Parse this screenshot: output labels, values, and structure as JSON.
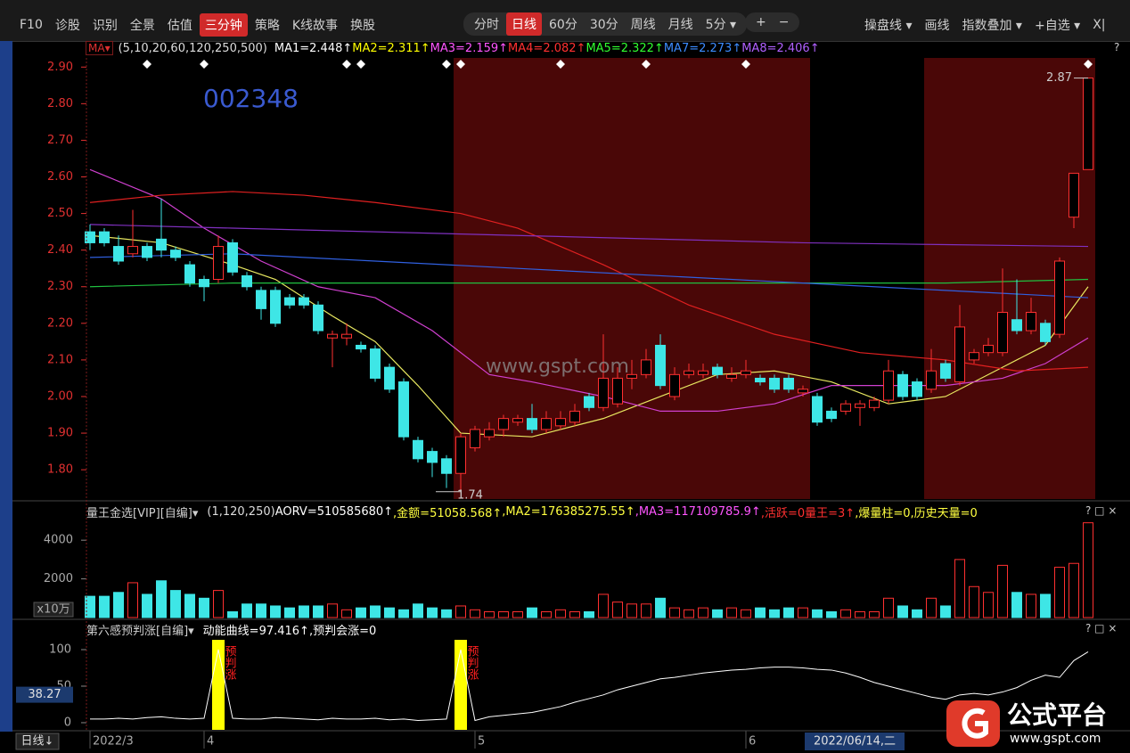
{
  "toolbar": {
    "left": [
      {
        "text": "F10"
      },
      {
        "text": "诊股"
      },
      {
        "text": "识别"
      },
      {
        "text": "全景"
      },
      {
        "text": "估值"
      },
      {
        "text": "三分钟",
        "active": true
      },
      {
        "text": "策略"
      },
      {
        "text": "K线故事"
      },
      {
        "text": "换股"
      }
    ],
    "periods": [
      {
        "text": "分时"
      },
      {
        "text": "日线",
        "active": true
      },
      {
        "text": "60分"
      },
      {
        "text": "30分"
      },
      {
        "text": "周线"
      },
      {
        "text": "月线"
      },
      {
        "text": "5分 ▾"
      }
    ],
    "zoom": [
      {
        "text": "+"
      },
      {
        "text": "−"
      }
    ],
    "right": [
      {
        "text": "操盘线 ▾"
      },
      {
        "text": "画线"
      },
      {
        "text": "指数叠加 ▾"
      },
      {
        "text": "+自选 ▾"
      },
      {
        "text": "X|"
      }
    ]
  },
  "panel_icons": "? □ ×",
  "period_button": "日线↓",
  "cursor_date": "2022/06/14,二",
  "logo": {
    "name": "公式平台",
    "url": "www.gspt.com"
  },
  "chart_data": [
    {
      "type": "candlestick",
      "title": "002348",
      "watermark": "www.gspt.com",
      "indicator_name": "MA▾",
      "params": "(5,10,20,60,120,250,500)",
      "help": "?",
      "legend": [
        {
          "text": "MA1=2.448↑",
          "color": "#ffffff"
        },
        {
          "text": "MA2=2.311↑",
          "color": "#ffff00"
        },
        {
          "text": "MA3=2.159↑",
          "color": "#ff55ff"
        },
        {
          "text": "MA4=2.082↑",
          "color": "#ff3030"
        },
        {
          "text": "MA5=2.322↑",
          "color": "#30ff30"
        },
        {
          "text": "MA7=2.273↑",
          "color": "#3c8cff"
        },
        {
          "text": "MA8=2.406↑",
          "color": "#b060ff"
        }
      ],
      "up_color": "#ff3030",
      "down_color": "#3ee6e6",
      "axis_color": "#e03030",
      "shade_color": "#4a0707",
      "open": [
        2.45,
        2.45,
        2.41,
        2.39,
        2.41,
        2.43,
        2.4,
        2.36,
        2.32,
        2.32,
        2.42,
        2.33,
        2.29,
        2.29,
        2.27,
        2.27,
        2.25,
        2.16,
        2.16,
        2.14,
        2.13,
        2.08,
        2.04,
        1.88,
        1.85,
        1.83,
        1.79,
        1.86,
        1.89,
        1.91,
        1.93,
        1.94,
        1.91,
        1.92,
        1.93,
        2.0,
        1.97,
        1.98,
        2.05,
        2.06,
        2.14,
        2.0,
        2.06,
        2.06,
        2.08,
        2.05,
        2.06,
        2.05,
        2.05,
        2.05,
        2.01,
        2.0,
        1.96,
        1.96,
        1.97,
        1.97,
        1.99,
        2.06,
        2.04,
        2.02,
        2.09,
        2.04,
        2.1,
        2.12,
        2.12,
        2.21,
        2.18,
        2.2,
        2.17,
        2.49,
        2.62
      ],
      "high": [
        2.47,
        2.46,
        2.44,
        2.51,
        2.42,
        2.54,
        2.41,
        2.37,
        2.33,
        2.44,
        2.43,
        2.34,
        2.3,
        2.3,
        2.28,
        2.28,
        2.26,
        2.18,
        2.2,
        2.15,
        2.14,
        2.09,
        2.05,
        1.89,
        1.86,
        1.84,
        1.9,
        1.92,
        1.93,
        1.95,
        1.95,
        1.98,
        1.96,
        1.96,
        1.98,
        2.01,
        2.17,
        2.08,
        2.1,
        2.13,
        2.17,
        2.08,
        2.09,
        2.09,
        2.09,
        2.08,
        2.1,
        2.06,
        2.06,
        2.06,
        2.03,
        2.01,
        1.97,
        1.99,
        1.99,
        2.0,
        2.1,
        2.07,
        2.05,
        2.13,
        2.1,
        2.25,
        2.13,
        2.16,
        2.35,
        2.32,
        2.27,
        2.21,
        2.38,
        2.61,
        2.87
      ],
      "low": [
        2.4,
        2.41,
        2.36,
        2.38,
        2.37,
        2.38,
        2.37,
        2.3,
        2.26,
        2.31,
        2.33,
        2.29,
        2.21,
        2.19,
        2.24,
        2.24,
        2.17,
        2.08,
        2.14,
        2.12,
        2.04,
        2.01,
        1.88,
        1.82,
        1.78,
        1.75,
        1.74,
        1.85,
        1.88,
        1.89,
        1.92,
        1.9,
        1.9,
        1.91,
        1.92,
        1.96,
        1.96,
        1.97,
        2.02,
        2.05,
        2.02,
        1.99,
        2.05,
        2.05,
        2.05,
        2.04,
        2.05,
        2.03,
        2.01,
        2.01,
        2.0,
        1.92,
        1.93,
        1.95,
        1.92,
        1.96,
        1.98,
        1.99,
        1.99,
        2.01,
        2.04,
        2.03,
        2.09,
        2.11,
        2.11,
        2.17,
        2.17,
        2.14,
        2.16,
        2.46,
        2.62
      ],
      "close": [
        2.42,
        2.42,
        2.37,
        2.41,
        2.38,
        2.4,
        2.38,
        2.31,
        2.3,
        2.41,
        2.34,
        2.3,
        2.24,
        2.2,
        2.25,
        2.25,
        2.18,
        2.17,
        2.17,
        2.13,
        2.05,
        2.02,
        1.89,
        1.83,
        1.82,
        1.79,
        1.89,
        1.91,
        1.91,
        1.94,
        1.94,
        1.91,
        1.94,
        1.94,
        1.96,
        1.97,
        2.05,
        2.05,
        2.06,
        2.1,
        2.03,
        2.06,
        2.07,
        2.07,
        2.06,
        2.06,
        2.07,
        2.04,
        2.02,
        2.02,
        2.02,
        1.93,
        1.94,
        1.98,
        1.98,
        1.99,
        2.07,
        2.0,
        2.0,
        2.07,
        2.05,
        2.19,
        2.12,
        2.14,
        2.23,
        2.18,
        2.23,
        2.15,
        2.37,
        2.61,
        2.87
      ],
      "ma_lines": [
        {
          "color": "#e8e860",
          "x": [
            0,
            5,
            10,
            13,
            17,
            20,
            23,
            26,
            31,
            36,
            40,
            44,
            48,
            52,
            56,
            60,
            64,
            67,
            70
          ],
          "values": [
            2.44,
            2.42,
            2.36,
            2.32,
            2.22,
            2.15,
            2.03,
            1.9,
            1.89,
            1.94,
            2.0,
            2.06,
            2.07,
            2.04,
            1.98,
            2.0,
            2.08,
            2.14,
            2.3
          ]
        },
        {
          "color": "#d040d0",
          "x": [
            0,
            5,
            8,
            12,
            16,
            20,
            24,
            28,
            31,
            36,
            40,
            44,
            48,
            52,
            56,
            60,
            64,
            67,
            70
          ],
          "values": [
            2.62,
            2.54,
            2.46,
            2.37,
            2.3,
            2.27,
            2.18,
            2.06,
            2.04,
            2.0,
            1.96,
            1.96,
            1.98,
            2.03,
            2.03,
            2.03,
            2.05,
            2.09,
            2.16
          ]
        },
        {
          "color": "#e02020",
          "x": [
            0,
            5,
            10,
            15,
            20,
            26,
            30,
            36,
            42,
            48,
            54,
            60,
            65,
            70
          ],
          "values": [
            2.53,
            2.55,
            2.56,
            2.55,
            2.53,
            2.5,
            2.46,
            2.36,
            2.25,
            2.17,
            2.12,
            2.1,
            2.07,
            2.08
          ]
        },
        {
          "color": "#20c040",
          "x": [
            0,
            10,
            20,
            30,
            40,
            50,
            60,
            70
          ],
          "values": [
            2.3,
            2.31,
            2.31,
            2.31,
            2.31,
            2.31,
            2.31,
            2.32
          ]
        },
        {
          "color": "#3060e0",
          "x": [
            0,
            10,
            20,
            30,
            40,
            50,
            60,
            70
          ],
          "values": [
            2.38,
            2.39,
            2.37,
            2.35,
            2.33,
            2.31,
            2.29,
            2.27
          ]
        },
        {
          "color": "#8030c0",
          "x": [
            0,
            10,
            20,
            30,
            40,
            50,
            60,
            70
          ],
          "values": [
            2.47,
            2.46,
            2.45,
            2.44,
            2.43,
            2.42,
            2.415,
            2.41
          ]
        }
      ],
      "shaded": [
        [
          25.5,
          50.5
        ],
        [
          58.5,
          70.5
        ]
      ],
      "signals": [
        4,
        8,
        18,
        19,
        25,
        26,
        33,
        39,
        46,
        70
      ],
      "high_label": 2.87,
      "low_label": 1.74,
      "ylim": [
        1.72,
        2.925
      ],
      "yticks": [
        {
          "value": 2.9,
          "label": "2.90"
        },
        {
          "value": 2.8,
          "label": "2.80"
        },
        {
          "value": 2.7,
          "label": "2.70"
        },
        {
          "value": 2.6,
          "label": "2.60"
        },
        {
          "value": 2.5,
          "label": "2.50"
        },
        {
          "value": 2.4,
          "label": "2.40"
        },
        {
          "value": 2.3,
          "label": "2.30"
        },
        {
          "value": 2.2,
          "label": "2.20"
        },
        {
          "value": 2.1,
          "label": "2.10"
        },
        {
          "value": 2.0,
          "label": "2.00"
        },
        {
          "value": 1.9,
          "label": "1.90"
        },
        {
          "value": 1.8,
          "label": "1.80"
        }
      ],
      "xticks": [
        {
          "value": 0,
          "label": "2022/3"
        },
        {
          "value": 8,
          "label": "4"
        },
        {
          "value": 27,
          "label": "5"
        },
        {
          "value": 46,
          "label": "6"
        }
      ]
    },
    {
      "type": "bar",
      "title": "量王金选[VIP][自编]▾",
      "legend": [
        {
          "text": "(1,120,250)",
          "color": "#dddddd"
        },
        {
          "text": "AORV=510585680↑",
          "color": "#ffffff"
        },
        {
          "text": ",金额=51058.568↑",
          "color": "#ffff40"
        },
        {
          "text": ",MA2=176385275.55↑",
          "color": "#ffff40"
        },
        {
          "text": ",MA3=117109785.9↑",
          "color": "#ff55ff"
        },
        {
          "text": ",活跃=0",
          "color": "#ff3030"
        },
        {
          "text": "量王=3↑",
          "color": "#ff3030"
        },
        {
          "text": ",爆量柱=0",
          "color": "#ffff40"
        },
        {
          "text": ",历史天量=0",
          "color": "#ffff40"
        }
      ],
      "unit": "x10万",
      "values": [
        1100,
        1100,
        1300,
        1800,
        1200,
        1900,
        1400,
        1200,
        1000,
        1400,
        300,
        700,
        700,
        600,
        500,
        600,
        600,
        700,
        400,
        500,
        600,
        500,
        400,
        700,
        500,
        400,
        600,
        400,
        300,
        300,
        300,
        500,
        300,
        400,
        300,
        300,
        1200,
        800,
        700,
        700,
        1000,
        500,
        400,
        500,
        400,
        500,
        400,
        500,
        400,
        500,
        500,
        400,
        300,
        400,
        300,
        300,
        1000,
        600,
        400,
        1000,
        600,
        3000,
        1600,
        1300,
        2700,
        1300,
        1200,
        1200,
        2600,
        2800,
        4900
      ],
      "ylim": [
        0,
        4930
      ],
      "yticks": [
        2000,
        4000
      ]
    },
    {
      "type": "line",
      "title": "第六感预判涨[自编]▾",
      "legend": [
        {
          "text": "动能曲线=97.416↑",
          "color": "#ffffff"
        },
        {
          "text": ",预判会涨=0",
          "color": "#ffffff"
        }
      ],
      "line_color": "#ffffff",
      "signal_color": "#ffff00",
      "signal_text": "预判涨",
      "signals": [
        9,
        26
      ],
      "cursor_value": 38.27,
      "values": [
        5,
        5,
        6,
        5,
        7,
        8,
        6,
        5,
        6,
        100,
        6,
        5,
        5,
        7,
        6,
        5,
        4,
        6,
        5,
        5,
        6,
        4,
        5,
        3,
        4,
        5,
        100,
        3,
        8,
        10,
        12,
        14,
        18,
        22,
        28,
        33,
        38,
        45,
        50,
        55,
        60,
        62,
        65,
        68,
        70,
        72,
        73,
        75,
        76,
        76,
        75,
        73,
        72,
        68,
        62,
        55,
        50,
        45,
        40,
        35,
        32,
        38,
        40,
        38,
        42,
        48,
        58,
        65,
        62,
        85,
        97
      ],
      "ylim": [
        -11,
        113.4
      ],
      "yticks": [
        0,
        50,
        100
      ]
    }
  ]
}
